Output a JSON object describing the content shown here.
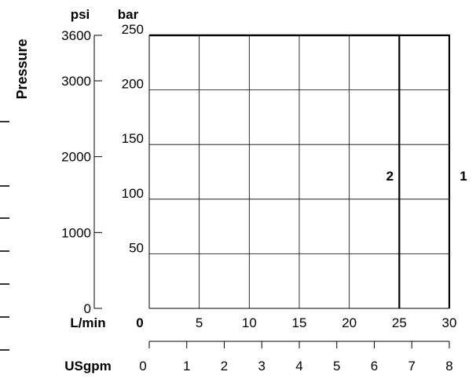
{
  "chart_data": {
    "type": "line",
    "y_left": {
      "unit_label": "psi",
      "ticks": [
        0,
        1000,
        2000,
        3000,
        3600
      ],
      "range": [
        0,
        3600
      ]
    },
    "y_right": {
      "unit_label": "bar",
      "ticks": [
        50,
        100,
        150,
        200,
        250
      ],
      "range": [
        0,
        250
      ]
    },
    "y_title": "Pressure",
    "x_main": {
      "unit_label": "L/min",
      "ticks": [
        0,
        5,
        10,
        15,
        20,
        25,
        30
      ],
      "range": [
        0,
        30
      ]
    },
    "x_secondary": {
      "unit_label": "USgpm",
      "ticks": [
        0,
        1,
        2,
        3,
        4,
        5,
        6,
        7,
        8
      ],
      "range": [
        0,
        8
      ]
    },
    "grid": true,
    "series": [
      {
        "name": "1",
        "points": [
          {
            "x": 0,
            "y": 250
          },
          {
            "x": 30,
            "y": 250
          },
          {
            "x": 30,
            "y": 0
          }
        ]
      },
      {
        "name": "2",
        "points": [
          {
            "x": 0,
            "y": 250
          },
          {
            "x": 25,
            "y": 250
          },
          {
            "x": 25,
            "y": 0
          }
        ]
      }
    ]
  }
}
